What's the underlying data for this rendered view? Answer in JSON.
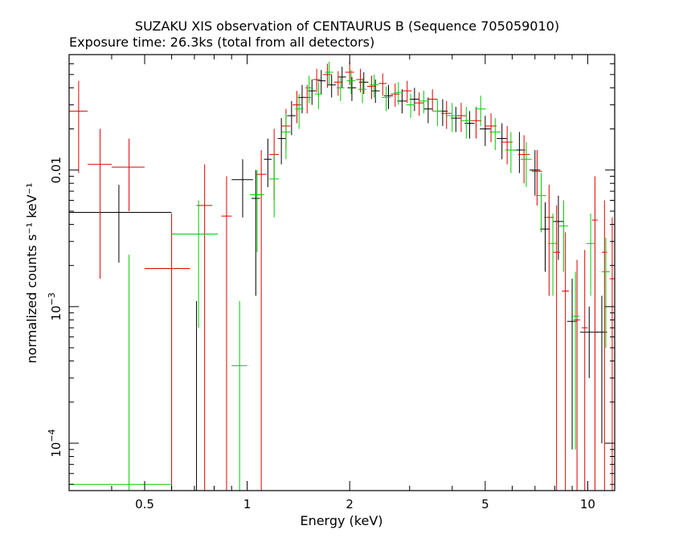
{
  "chart_data": {
    "type": "scatter",
    "title": "SUZAKU XIS observation of CENTAURUS B (Sequence 705059010)",
    "subtitle": "Exposure time: 26.3ks (total from all detectors)",
    "xlabel": "Energy (keV)",
    "ylabel": "normalized counts s⁻¹ keV⁻¹",
    "xscale": "log",
    "yscale": "log",
    "xlim": [
      0.3,
      12
    ],
    "ylim": [
      4.5e-05,
      0.07
    ],
    "xticks": [
      {
        "value": 0.5,
        "label": "0.5"
      },
      {
        "value": 1,
        "label": "1"
      },
      {
        "value": 2,
        "label": "2"
      },
      {
        "value": 5,
        "label": "5"
      },
      {
        "value": 10,
        "label": "10"
      }
    ],
    "yticks": [
      {
        "value": 0.0001,
        "base": "10",
        "exp": "−4"
      },
      {
        "value": 0.001,
        "base": "10",
        "exp": "−3"
      },
      {
        "value": 0.01,
        "base": "0.01",
        "exp": ""
      }
    ],
    "colors": {
      "black": "#000000",
      "red": "#e00000",
      "green": "#00cc00"
    },
    "series": [
      {
        "color": "#000000",
        "points": [
          [
            0.42,
            0.0049,
            0.3,
            0.6,
            0.0021,
            0.0078
          ],
          [
            0.71,
            4e-05,
            0.69,
            0.73,
            3.5e-05,
            0.0011
          ],
          [
            0.97,
            0.0085,
            0.9,
            1.04,
            0.0045,
            0.012
          ],
          [
            1.06,
            0.0062,
            1.03,
            1.09,
            0.0012,
            0.01
          ],
          [
            1.15,
            0.012,
            1.12,
            1.18,
            0.0075,
            0.017
          ],
          [
            1.26,
            0.017,
            1.23,
            1.3,
            0.011,
            0.024
          ],
          [
            1.35,
            0.025,
            1.31,
            1.39,
            0.018,
            0.032
          ],
          [
            1.45,
            0.034,
            1.41,
            1.49,
            0.026,
            0.042
          ],
          [
            1.55,
            0.038,
            1.51,
            1.59,
            0.03,
            0.046
          ],
          [
            1.65,
            0.045,
            1.61,
            1.7,
            0.036,
            0.054
          ],
          [
            1.77,
            0.042,
            1.72,
            1.82,
            0.034,
            0.05
          ],
          [
            1.9,
            0.048,
            1.85,
            1.95,
            0.04,
            0.057
          ],
          [
            2.03,
            0.04,
            1.97,
            2.09,
            0.032,
            0.048
          ],
          [
            2.2,
            0.044,
            2.13,
            2.27,
            0.036,
            0.052
          ],
          [
            2.38,
            0.038,
            2.31,
            2.45,
            0.031,
            0.046
          ],
          [
            2.6,
            0.035,
            2.52,
            2.68,
            0.028,
            0.042
          ],
          [
            2.85,
            0.032,
            2.76,
            2.94,
            0.026,
            0.039
          ],
          [
            3.1,
            0.033,
            3.0,
            3.2,
            0.027,
            0.04
          ],
          [
            3.4,
            0.028,
            3.3,
            3.5,
            0.022,
            0.034
          ],
          [
            3.75,
            0.027,
            3.62,
            3.88,
            0.021,
            0.033
          ],
          [
            4.1,
            0.024,
            3.96,
            4.24,
            0.019,
            0.029
          ],
          [
            4.5,
            0.022,
            4.35,
            4.65,
            0.017,
            0.027
          ],
          [
            5.0,
            0.02,
            4.82,
            5.18,
            0.015,
            0.025
          ],
          [
            5.6,
            0.017,
            5.4,
            5.8,
            0.012,
            0.022
          ],
          [
            6.3,
            0.014,
            6.05,
            6.55,
            0.0095,
            0.019
          ],
          [
            7.0,
            0.01,
            6.75,
            7.25,
            0.0065,
            0.014
          ],
          [
            7.5,
            0.0037,
            7.25,
            7.75,
            0.0018,
            0.0058
          ],
          [
            8.2,
            0.0042,
            7.9,
            8.5,
            0.0022,
            0.0065
          ],
          [
            9.0,
            0.00078,
            8.7,
            9.3,
            9e-05,
            0.0016
          ],
          [
            10.1,
            0.00065,
            9.5,
            10.7,
            0.0003,
            0.001
          ],
          [
            11.0,
            0.00065,
            10.6,
            11.4,
            0.0001,
            0.0012
          ]
        ]
      },
      {
        "color": "#e00000",
        "points": [
          [
            0.32,
            0.027,
            0.3,
            0.34,
            0.0095,
            0.045
          ],
          [
            0.37,
            0.011,
            0.34,
            0.4,
            0.0016,
            0.02
          ],
          [
            0.45,
            0.0105,
            0.4,
            0.5,
            0.005,
            0.017
          ],
          [
            0.6,
            0.0019,
            0.5,
            0.68,
            4e-05,
            0.0048
          ],
          [
            0.75,
            0.0055,
            0.71,
            0.79,
            4e-05,
            0.011
          ],
          [
            0.87,
            0.0046,
            0.84,
            0.9,
            4e-05,
            0.009
          ],
          [
            1.1,
            0.0093,
            1.06,
            1.14,
            4e-05,
            0.014
          ],
          [
            1.2,
            0.013,
            1.16,
            1.24,
            0.006,
            0.02
          ],
          [
            1.3,
            0.021,
            1.26,
            1.34,
            0.014,
            0.028
          ],
          [
            1.4,
            0.03,
            1.36,
            1.44,
            0.022,
            0.038
          ],
          [
            1.5,
            0.034,
            1.46,
            1.54,
            0.026,
            0.042
          ],
          [
            1.6,
            0.046,
            1.56,
            1.64,
            0.037,
            0.055
          ],
          [
            1.72,
            0.05,
            1.67,
            1.77,
            0.04,
            0.06
          ],
          [
            1.85,
            0.044,
            1.8,
            1.9,
            0.035,
            0.053
          ],
          [
            2.0,
            0.052,
            1.94,
            2.06,
            0.042,
            0.062
          ],
          [
            2.15,
            0.046,
            2.09,
            2.21,
            0.037,
            0.055
          ],
          [
            2.32,
            0.041,
            2.25,
            2.39,
            0.033,
            0.049
          ],
          [
            2.5,
            0.043,
            2.43,
            2.57,
            0.035,
            0.051
          ],
          [
            2.72,
            0.036,
            2.64,
            2.8,
            0.029,
            0.043
          ],
          [
            2.95,
            0.038,
            2.86,
            3.04,
            0.031,
            0.045
          ],
          [
            3.2,
            0.031,
            3.1,
            3.3,
            0.025,
            0.037
          ],
          [
            3.5,
            0.033,
            3.38,
            3.62,
            0.027,
            0.039
          ],
          [
            3.85,
            0.026,
            3.72,
            3.98,
            0.02,
            0.032
          ],
          [
            4.25,
            0.025,
            4.1,
            4.4,
            0.019,
            0.031
          ],
          [
            4.7,
            0.023,
            4.53,
            4.87,
            0.017,
            0.029
          ],
          [
            5.2,
            0.021,
            5.0,
            5.4,
            0.016,
            0.026
          ],
          [
            5.8,
            0.016,
            5.58,
            6.02,
            0.011,
            0.021
          ],
          [
            6.5,
            0.013,
            6.25,
            6.75,
            0.008,
            0.018
          ],
          [
            7.1,
            0.0098,
            6.85,
            7.35,
            0.0055,
            0.014
          ],
          [
            7.7,
            0.0045,
            7.45,
            7.95,
            0.0012,
            0.0078
          ],
          [
            8.1,
            0.0025,
            7.9,
            8.3,
            4e-05,
            0.0055
          ],
          [
            8.6,
            0.0013,
            8.4,
            8.8,
            4e-05,
            0.0035
          ],
          [
            9.3,
            0.0008,
            9.1,
            9.5,
            4e-05,
            0.0022
          ],
          [
            9.8,
            0.0007,
            9.6,
            10.0,
            4e-05,
            0.0026
          ],
          [
            10.5,
            0.0043,
            10.3,
            10.7,
            4e-05,
            0.009
          ],
          [
            11.2,
            0.0025,
            11.0,
            11.4,
            4e-05,
            0.006
          ],
          [
            11.8,
            0.0016,
            11.6,
            12.0,
            4e-05,
            0.0045
          ]
        ]
      },
      {
        "color": "#00cc00",
        "points": [
          [
            0.45,
            5e-05,
            0.3,
            0.6,
            4e-05,
            0.0024
          ],
          [
            0.72,
            0.0034,
            0.6,
            0.82,
            0.0007,
            0.006
          ],
          [
            0.95,
            0.00037,
            0.9,
            1.0,
            4e-05,
            0.0011
          ],
          [
            1.07,
            0.0066,
            1.02,
            1.12,
            0.0025,
            0.01
          ],
          [
            1.2,
            0.0086,
            1.16,
            1.24,
            0.0045,
            0.013
          ],
          [
            1.3,
            0.019,
            1.26,
            1.34,
            0.012,
            0.026
          ],
          [
            1.42,
            0.028,
            1.38,
            1.46,
            0.02,
            0.036
          ],
          [
            1.52,
            0.04,
            1.48,
            1.56,
            0.031,
            0.049
          ],
          [
            1.62,
            0.036,
            1.58,
            1.66,
            0.028,
            0.044
          ],
          [
            1.74,
            0.052,
            1.69,
            1.79,
            0.042,
            0.062
          ],
          [
            1.88,
            0.04,
            1.83,
            1.93,
            0.032,
            0.048
          ],
          [
            2.02,
            0.045,
            1.96,
            2.08,
            0.036,
            0.054
          ],
          [
            2.18,
            0.039,
            2.12,
            2.24,
            0.031,
            0.047
          ],
          [
            2.36,
            0.042,
            2.29,
            2.43,
            0.034,
            0.05
          ],
          [
            2.56,
            0.034,
            2.48,
            2.64,
            0.027,
            0.041
          ],
          [
            2.78,
            0.037,
            2.7,
            2.86,
            0.03,
            0.044
          ],
          [
            3.02,
            0.03,
            2.93,
            3.11,
            0.024,
            0.036
          ],
          [
            3.3,
            0.032,
            3.2,
            3.4,
            0.026,
            0.038
          ],
          [
            3.62,
            0.027,
            3.5,
            3.74,
            0.021,
            0.033
          ],
          [
            4.0,
            0.025,
            3.86,
            4.14,
            0.019,
            0.031
          ],
          [
            4.4,
            0.023,
            4.25,
            4.55,
            0.017,
            0.029
          ],
          [
            4.85,
            0.028,
            4.68,
            5.02,
            0.021,
            0.035
          ],
          [
            5.35,
            0.019,
            5.15,
            5.55,
            0.014,
            0.024
          ],
          [
            5.95,
            0.014,
            5.72,
            6.18,
            0.0095,
            0.019
          ],
          [
            6.6,
            0.012,
            6.35,
            6.85,
            0.0075,
            0.016
          ],
          [
            7.3,
            0.0065,
            7.05,
            7.55,
            0.0035,
            0.0095
          ],
          [
            7.9,
            0.0029,
            7.65,
            8.15,
            0.0012,
            0.0048
          ],
          [
            8.5,
            0.0039,
            8.25,
            8.75,
            0.0018,
            0.006
          ],
          [
            9.2,
            0.00085,
            8.95,
            9.45,
            9e-05,
            0.0018
          ],
          [
            10.2,
            0.0029,
            9.9,
            10.5,
            0.0012,
            0.0048
          ],
          [
            11.3,
            0.0018,
            11.0,
            11.6,
            0.0005,
            0.0032
          ]
        ]
      }
    ]
  }
}
